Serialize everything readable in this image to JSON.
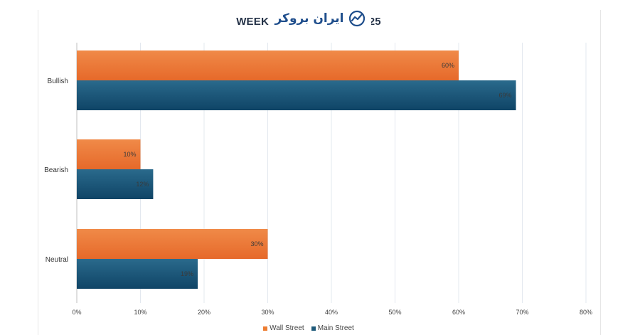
{
  "chart_data": {
    "type": "bar",
    "orientation": "horizontal",
    "title": "WEEKLY GOLD . . - 15, 2025",
    "categories": [
      "Bullish",
      "Bearish",
      "Neutral"
    ],
    "series": [
      {
        "name": "Wall Street",
        "values": [
          60,
          10,
          30
        ],
        "labels": [
          "60%",
          "10%",
          "30%"
        ],
        "color": "#ED7D31"
      },
      {
        "name": "Main Street",
        "values": [
          69,
          12,
          19
        ],
        "labels": [
          "69%",
          "12%",
          "19%"
        ],
        "color": "#1F5A7A"
      }
    ],
    "xlim": [
      0,
      80
    ],
    "x_ticks": [
      "0%",
      "10%",
      "20%",
      "30%",
      "40%",
      "50%",
      "60%",
      "70%",
      "80%"
    ],
    "grid": true,
    "legend_position": "bottom"
  },
  "watermark": {
    "text": "ایران بروکر",
    "icon": "chart-line-logo-icon",
    "color": "#1f4e8c"
  }
}
